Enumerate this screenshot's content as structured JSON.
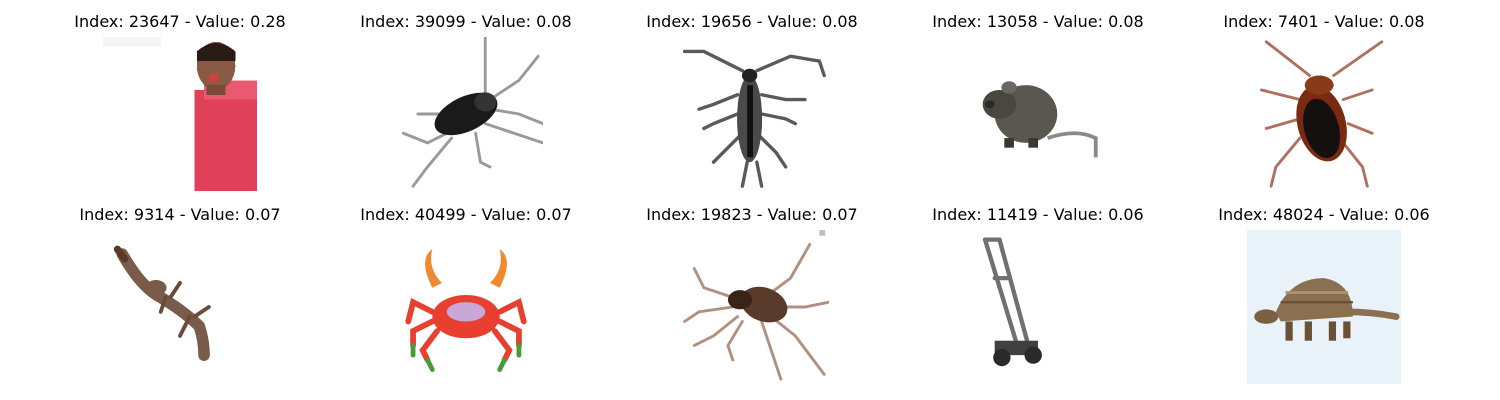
{
  "items": [
    {
      "title": "Index: 23647 - Value: 0.28",
      "icon": "person-in-pink-shirt-image"
    },
    {
      "title": "Index: 39099 - Value: 0.08",
      "icon": "black-cockroach-image"
    },
    {
      "title": "Index: 19656 - Value: 0.08",
      "icon": "long-horned-beetle-image"
    },
    {
      "title": "Index: 13058 - Value: 0.08",
      "icon": "gray-rat-image"
    },
    {
      "title": "Index: 7401 - Value: 0.08",
      "icon": "brown-cockroach-image"
    },
    {
      "title": "Index: 9314 - Value: 0.07",
      "icon": "lizard-image"
    },
    {
      "title": "Index: 40499 - Value: 0.07",
      "icon": "red-crab-image"
    },
    {
      "title": "Index: 19823 - Value: 0.07",
      "icon": "spider-image"
    },
    {
      "title": "Index: 11419 - Value: 0.06",
      "icon": "lawn-mower-image"
    },
    {
      "title": "Index: 48024 - Value: 0.06",
      "icon": "armadillo-image"
    }
  ],
  "colors": {
    "pink_shirt": "#e0405a",
    "skin": "#8a5a44",
    "insect_dark": "#1a1a1a",
    "roach_brown": "#7a2a10",
    "rat_gray": "#5a5650",
    "lizard_brown": "#7a5a48",
    "crab_red": "#e84030",
    "crab_orange": "#f08a30",
    "spider_brown": "#5a3a2a",
    "mower_gray": "#404040",
    "armadillo_brown": "#8a7050",
    "armadillo_bg": "#e8f2f8"
  }
}
